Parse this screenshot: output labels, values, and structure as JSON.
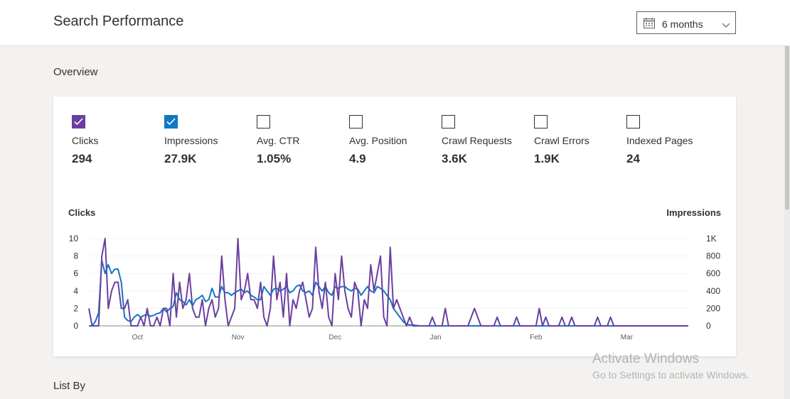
{
  "header": {
    "title": "Search Performance",
    "range": {
      "value": "6 months",
      "icon": "calendar-icon"
    }
  },
  "overview": {
    "title": "Overview",
    "metrics": [
      {
        "label": "Clicks",
        "value": "294",
        "checked": true,
        "color": "#6b3fa0"
      },
      {
        "label": "Impressions",
        "value": "27.9K",
        "checked": true,
        "color": "#0f78c4"
      },
      {
        "label": "Avg. CTR",
        "value": "1.05%",
        "checked": false
      },
      {
        "label": "Avg. Position",
        "value": "4.9",
        "checked": false
      },
      {
        "label": "Crawl Requests",
        "value": "3.6K",
        "checked": false
      },
      {
        "label": "Crawl Errors",
        "value": "1.9K",
        "checked": false
      },
      {
        "label": "Indexed Pages",
        "value": "24",
        "checked": false
      }
    ]
  },
  "list_by": {
    "title": "List By"
  },
  "watermark": {
    "line1": "Activate Windows",
    "line2": "Go to Settings to activate Windows."
  },
  "chart_data": {
    "type": "line",
    "left_axis_label": "Clicks",
    "right_axis_label": "Impressions",
    "left_ticks": [
      "0",
      "2",
      "4",
      "6",
      "8",
      "10"
    ],
    "right_ticks": [
      "0",
      "200",
      "400",
      "600",
      "800",
      "1K"
    ],
    "ylim_left": [
      0,
      10
    ],
    "ylim_right": [
      0,
      1000
    ],
    "x_ticks": [
      "Oct",
      "Nov",
      "Dec",
      "Jan",
      "Feb",
      "Mar"
    ],
    "x_tick_day_index": [
      15,
      46,
      76,
      107,
      138,
      166
    ],
    "series": [
      {
        "name": "Clicks",
        "color": "#6b3fa0",
        "values": [
          2,
          0,
          0,
          0,
          8,
          10,
          2,
          4,
          5,
          5,
          2,
          2,
          3,
          0,
          0,
          0,
          1,
          0,
          2,
          0,
          0,
          1,
          0,
          2,
          2,
          0,
          6,
          1,
          5,
          2,
          3,
          6,
          2,
          1,
          1,
          3,
          0,
          2,
          3,
          1,
          2,
          8,
          3,
          0,
          1,
          2,
          10,
          3,
          4,
          6,
          3,
          3,
          2,
          5,
          1,
          0,
          2,
          8,
          3,
          5,
          1,
          6,
          0,
          3,
          2,
          4,
          5,
          3,
          1,
          2,
          9,
          4,
          2,
          5,
          1,
          0,
          6,
          3,
          8,
          4,
          2,
          1,
          5,
          4,
          0,
          3,
          2,
          7,
          4,
          6,
          8,
          1,
          0,
          9,
          2,
          3,
          2,
          1,
          0,
          1,
          0,
          0,
          0,
          0,
          0,
          0,
          1,
          0,
          0,
          0,
          2,
          0,
          0,
          0,
          0,
          0,
          0,
          0,
          1,
          2,
          1,
          0,
          0,
          0,
          0,
          0,
          1,
          0,
          0,
          0,
          0,
          0,
          1,
          0,
          0,
          0,
          0,
          0,
          0,
          2,
          0,
          1,
          0,
          0,
          0,
          0,
          1,
          0,
          0,
          1,
          0,
          0,
          0,
          0,
          0,
          0,
          0,
          1,
          0,
          0,
          0,
          1,
          0,
          0,
          0,
          0,
          0,
          0,
          0,
          0,
          0,
          0,
          0,
          0,
          0,
          0,
          0,
          0,
          0,
          0,
          0,
          0,
          0,
          0,
          0,
          0
        ]
      },
      {
        "name": "Impressions",
        "values": [
          0,
          0,
          50,
          150,
          750,
          600,
          700,
          600,
          650,
          650,
          500,
          100,
          60,
          50,
          100,
          130,
          100,
          120,
          130,
          110,
          120,
          140,
          150,
          200,
          160,
          200,
          220,
          380,
          300,
          280,
          240,
          300,
          230,
          300,
          320,
          350,
          280,
          300,
          430,
          330,
          330,
          450,
          380,
          380,
          350,
          380,
          400,
          420,
          380,
          400,
          350,
          330,
          300,
          300,
          450,
          400,
          350,
          420,
          430,
          400,
          420,
          450,
          380,
          400,
          450,
          470,
          400,
          380,
          400,
          350,
          500,
          450,
          400,
          450,
          380,
          350,
          450,
          430,
          450,
          450,
          420,
          400,
          430,
          420,
          350,
          400,
          450,
          400,
          380,
          450,
          430,
          400,
          350,
          300,
          200,
          150,
          100,
          50,
          20,
          10,
          10,
          5,
          0,
          0,
          0,
          0,
          0,
          0,
          0,
          0,
          0,
          0,
          0,
          0,
          0,
          0,
          0,
          0,
          0,
          0,
          0,
          0,
          0,
          0,
          0,
          0,
          0,
          0,
          0,
          0,
          0,
          0,
          0,
          0,
          0,
          0,
          0,
          0,
          0,
          0,
          0,
          0,
          0,
          0,
          0,
          0,
          0,
          0,
          0,
          0,
          0,
          0,
          0,
          0,
          0,
          0,
          0,
          0,
          0,
          0,
          0,
          0,
          0,
          0,
          0,
          0,
          0,
          0,
          0,
          0,
          0,
          0,
          0,
          0,
          0,
          0,
          0,
          0,
          0,
          0,
          0,
          0,
          0,
          0,
          0,
          0
        ],
        "color": "#0f78c4"
      }
    ]
  }
}
